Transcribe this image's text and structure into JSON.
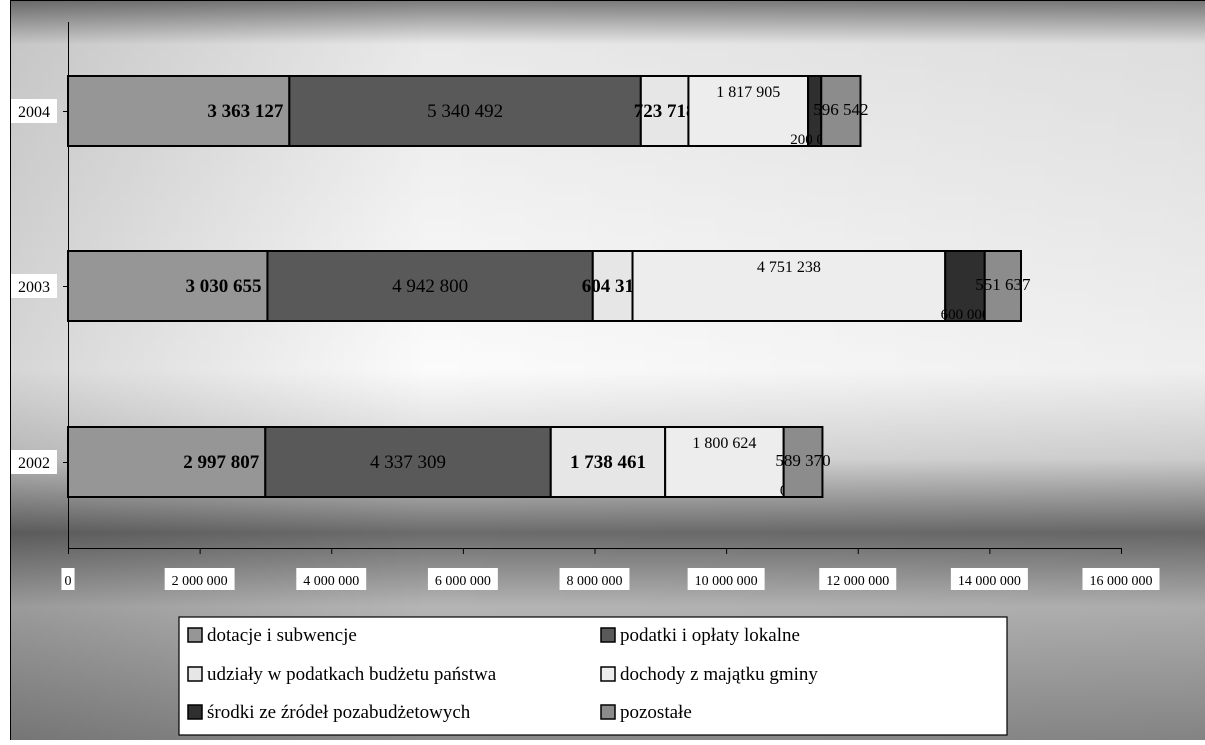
{
  "colors": {
    "dotacje": "#969696",
    "podatki": "#595959",
    "udzialy": "#e6e6e6",
    "majatek": "#ededed",
    "srodki": "#2f2f2f",
    "pozostale": "#8c8c8c",
    "background_light": "#f2f2f2",
    "background_dark": "#666666"
  },
  "chart_data": {
    "type": "bar",
    "orientation": "horizontal",
    "stacked": true,
    "categories": [
      "2004",
      "2003",
      "2002"
    ],
    "series": [
      {
        "name": "dotacje i subwencje",
        "values": [
          3363127,
          3030655,
          2997807
        ],
        "labels": [
          "3 363 127",
          "3 030 655",
          "2 997 807"
        ],
        "color_key": "dotacje"
      },
      {
        "name": "podatki i opłaty lokalne",
        "values": [
          5340492,
          4942800,
          4337309
        ],
        "labels": [
          "5 340 492",
          "4 942 800",
          "4 337 309"
        ],
        "color_key": "podatki"
      },
      {
        "name": "udziały w podatkach budżetu państwa",
        "values": [
          723718,
          604319,
          1738461
        ],
        "labels": [
          "723 718",
          "604 319",
          "1 738 461"
        ],
        "color_key": "udzialy"
      },
      {
        "name": "dochody z majątku gminy",
        "values": [
          1817905,
          4751238,
          1800624
        ],
        "labels": [
          "1 817 905",
          "4 751 238",
          "1 800 624"
        ],
        "color_key": "majatek"
      },
      {
        "name": "środki ze źródeł pozabudżetowych",
        "values": [
          200000,
          600000,
          0
        ],
        "labels": [
          "200 000",
          "600 000",
          "0"
        ],
        "color_key": "srodki"
      },
      {
        "name": "pozostałe",
        "values": [
          596542,
          551637,
          589370
        ],
        "labels": [
          "596 542",
          "551 637",
          "589 370"
        ],
        "color_key": "pozostale"
      }
    ],
    "x_ticks": [
      "0",
      "2 000 000",
      "4 000 000",
      "6 000 000",
      "8 000 000",
      "10 000 000",
      "12 000 000",
      "14 000 000",
      "16 000 000"
    ],
    "xlim": [
      0,
      16000000
    ],
    "grid": false,
    "legend": {
      "position": "bottom",
      "columns": 2,
      "order": [
        "dotacje i subwencje",
        "podatki i opłaty lokalne",
        "udziały w podatkach budżetu państwa",
        "dochody z majątku gminy",
        "środki ze źródeł pozabudżetowych",
        "pozostałe"
      ]
    },
    "title": "",
    "xlabel": "",
    "ylabel": ""
  }
}
